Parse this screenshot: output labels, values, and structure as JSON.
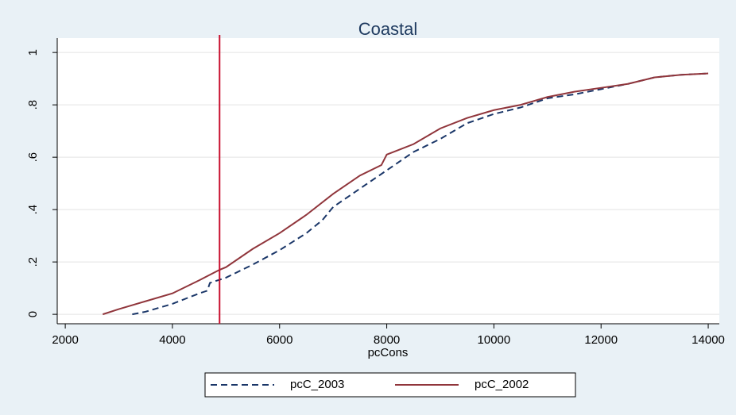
{
  "chart_data": {
    "type": "line",
    "title": "Coastal",
    "x_label": "pcCons",
    "xlim": [
      1850,
      14207
    ],
    "xticks": [
      2000,
      4000,
      6000,
      8000,
      10000,
      12000,
      14000
    ],
    "ylim": [
      -0.036,
      1.055
    ],
    "yticks": [
      0,
      {
        "value": 0.2,
        "label": ".2"
      },
      {
        "value": 0.4,
        "label": ".4"
      },
      {
        "value": 0.6,
        "label": ".6"
      },
      {
        "value": 0.8,
        "label": ".8"
      },
      1
    ],
    "grid": true,
    "legend": "bottom",
    "xline": {
      "value": 4880,
      "color": "#c8102e"
    },
    "series": [
      {
        "name": "pcC_2003",
        "color": "#1a3668",
        "dash": true,
        "x": [
          3250,
          3500,
          4000,
          4500,
          4650,
          4700,
          5000,
          5500,
          6000,
          6500,
          6800,
          7000,
          7500,
          8000,
          8500,
          9000,
          9500,
          10000,
          10500,
          11000,
          11500,
          12000,
          12500,
          13000,
          13500,
          14000
        ],
        "values": [
          0,
          0.01,
          0.04,
          0.08,
          0.09,
          0.12,
          0.14,
          0.19,
          0.245,
          0.31,
          0.36,
          0.41,
          0.48,
          0.55,
          0.62,
          0.67,
          0.73,
          0.765,
          0.79,
          0.825,
          0.84,
          0.86,
          0.88,
          0.905,
          0.915,
          0.92
        ]
      },
      {
        "name": "pcC_2002",
        "color": "#90353b",
        "dash": false,
        "x": [
          2700,
          3000,
          3500,
          4000,
          4500,
          4880,
          5000,
          5500,
          6000,
          6500,
          7000,
          7500,
          7900,
          8000,
          8500,
          9000,
          9500,
          10000,
          10500,
          11000,
          11500,
          12000,
          12500,
          13000,
          13500,
          14000
        ],
        "values": [
          0,
          0.02,
          0.05,
          0.08,
          0.13,
          0.17,
          0.18,
          0.25,
          0.31,
          0.38,
          0.46,
          0.53,
          0.57,
          0.61,
          0.65,
          0.71,
          0.75,
          0.78,
          0.8,
          0.83,
          0.85,
          0.865,
          0.88,
          0.905,
          0.915,
          0.92
        ]
      }
    ]
  }
}
